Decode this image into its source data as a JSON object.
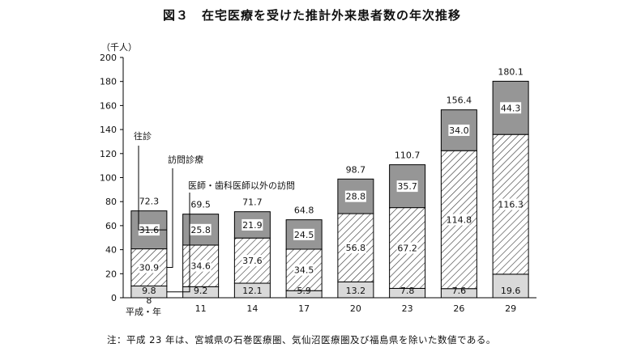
{
  "chart_data": {
    "type": "bar",
    "stacked": true,
    "title": "図３　在宅医療を受けた推計外来患者数の年次推移",
    "ylabel": "（千人）",
    "xlabel": "平成・年",
    "ylim": [
      0,
      200
    ],
    "yticks": [
      0,
      20,
      40,
      60,
      80,
      100,
      120,
      140,
      160,
      180,
      200
    ],
    "categories": [
      "8",
      "11",
      "14",
      "17",
      "20",
      "23",
      "26",
      "29"
    ],
    "series": [
      {
        "name": "医師・歯科医師以外の訪問",
        "values": [
          9.8,
          9.2,
          12.1,
          5.9,
          13.2,
          7.8,
          7.6,
          19.6
        ],
        "color": "#d9d9d9"
      },
      {
        "name": "訪問診療",
        "values": [
          30.9,
          34.6,
          37.6,
          34.5,
          56.8,
          67.2,
          114.8,
          116.3
        ],
        "color": "hatched"
      },
      {
        "name": "往診",
        "values": [
          31.6,
          25.8,
          21.9,
          24.5,
          28.8,
          35.7,
          34.0,
          44.3
        ],
        "color": "#969696"
      }
    ],
    "totals": [
      72.3,
      69.5,
      71.7,
      64.8,
      98.7,
      110.7,
      156.4,
      180.1
    ],
    "legend_placement": "inline-left",
    "grid": false
  },
  "footnote": "注：平成 23 年は、宮城県の石巻医療圏、気仙沼医療圏及び福島県を除いた数値である。"
}
